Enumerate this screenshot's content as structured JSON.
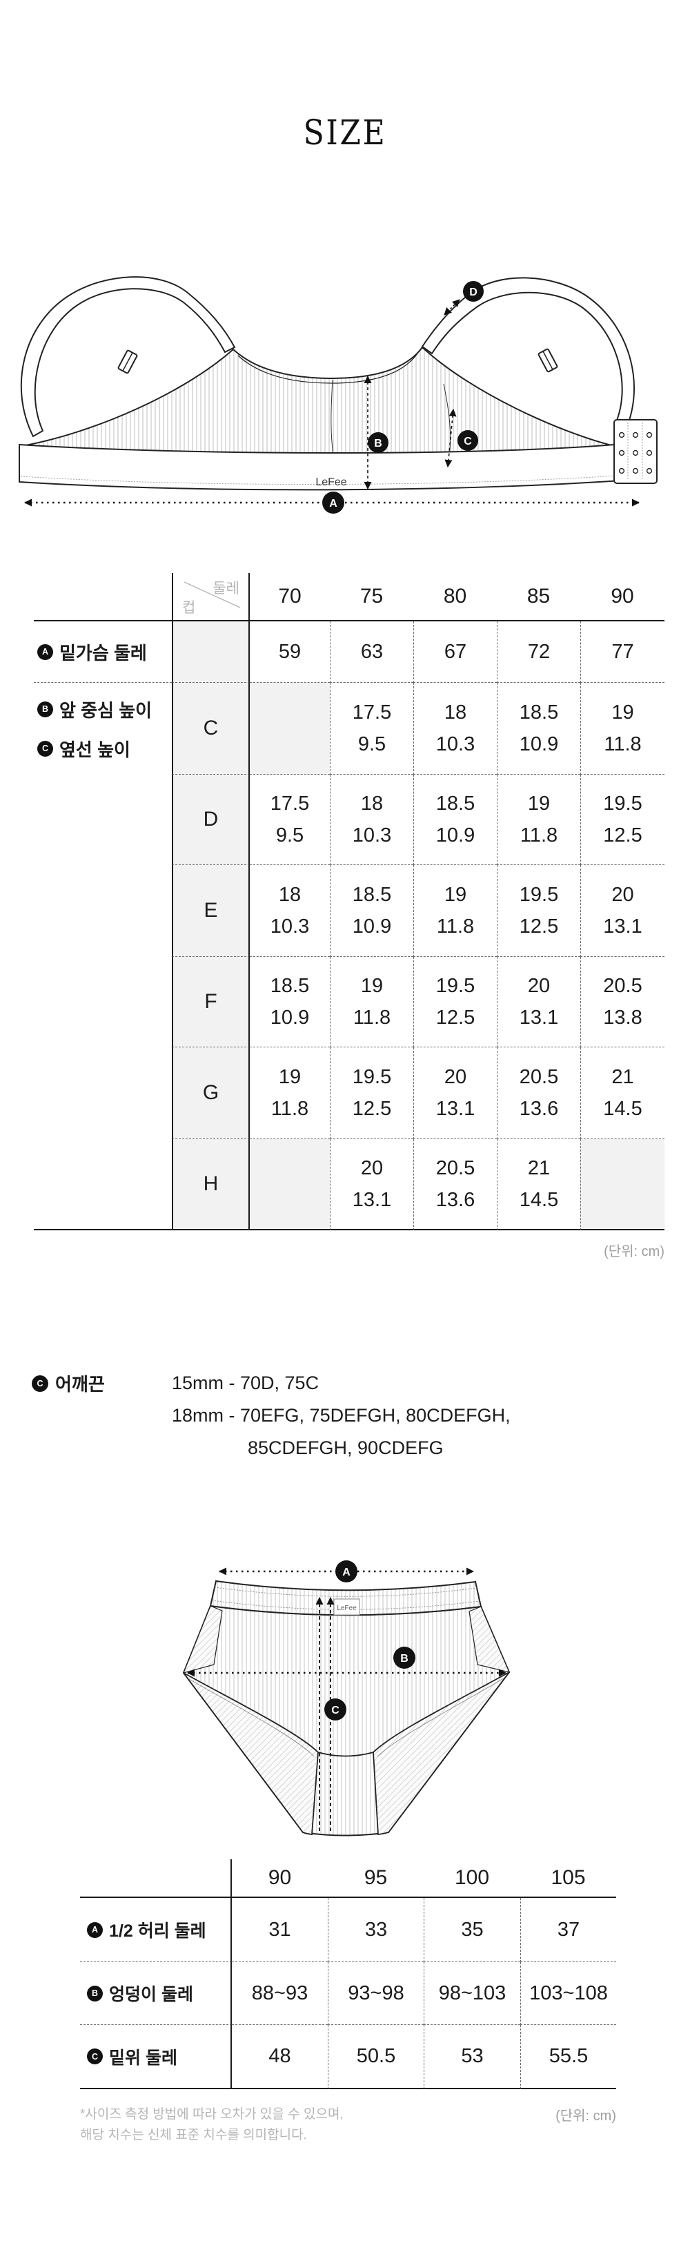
{
  "page": {
    "title": "SIZE"
  },
  "bra_diagram": {
    "brand_label": "LeFee",
    "marker_a": "A",
    "marker_b": "B",
    "marker_c": "C",
    "marker_d": "D"
  },
  "bra_table": {
    "corner_top": "둘레",
    "corner_bottom": "컵",
    "sizes": [
      "70",
      "75",
      "80",
      "85",
      "90"
    ],
    "underbust": {
      "marker": "A",
      "label": "밑가슴 둘레",
      "values": [
        "59",
        "63",
        "67",
        "72",
        "77"
      ]
    },
    "legend": [
      {
        "marker": "B",
        "label": "앞 중심 높이"
      },
      {
        "marker": "C",
        "label": "옆선 높이"
      }
    ],
    "cup_rows": [
      {
        "cup": "C",
        "cells": [
          [
            "",
            ""
          ],
          [
            "17.5",
            "9.5"
          ],
          [
            "18",
            "10.3"
          ],
          [
            "18.5",
            "10.9"
          ],
          [
            "19",
            "11.8"
          ]
        ]
      },
      {
        "cup": "D",
        "cells": [
          [
            "17.5",
            "9.5"
          ],
          [
            "18",
            "10.3"
          ],
          [
            "18.5",
            "10.9"
          ],
          [
            "19",
            "11.8"
          ],
          [
            "19.5",
            "12.5"
          ]
        ]
      },
      {
        "cup": "E",
        "cells": [
          [
            "18",
            "10.3"
          ],
          [
            "18.5",
            "10.9"
          ],
          [
            "19",
            "11.8"
          ],
          [
            "19.5",
            "12.5"
          ],
          [
            "20",
            "13.1"
          ]
        ]
      },
      {
        "cup": "F",
        "cells": [
          [
            "18.5",
            "10.9"
          ],
          [
            "19",
            "11.8"
          ],
          [
            "19.5",
            "12.5"
          ],
          [
            "20",
            "13.1"
          ],
          [
            "20.5",
            "13.8"
          ]
        ]
      },
      {
        "cup": "G",
        "cells": [
          [
            "19",
            "11.8"
          ],
          [
            "19.5",
            "12.5"
          ],
          [
            "20",
            "13.1"
          ],
          [
            "20.5",
            "13.6"
          ],
          [
            "21",
            "14.5"
          ]
        ]
      },
      {
        "cup": "H",
        "cells": [
          [
            "",
            ""
          ],
          [
            "20",
            "13.1"
          ],
          [
            "20.5",
            "13.6"
          ],
          [
            "21",
            "14.5"
          ],
          [
            "",
            ""
          ]
        ]
      }
    ],
    "unit_note": "(단위: cm)"
  },
  "strap_section": {
    "marker": "C",
    "label": "어깨끈",
    "lines": [
      "15mm - 70D, 75C",
      "18mm - 70EFG, 75DEFGH, 80CDEFGH,",
      "85CDEFGH, 90CDEFG"
    ]
  },
  "panty_diagram": {
    "brand_label": "LeFee",
    "marker_a": "A",
    "marker_b": "B",
    "marker_c": "C"
  },
  "panty_table": {
    "sizes": [
      "90",
      "95",
      "100",
      "105"
    ],
    "rows": [
      {
        "marker": "A",
        "label": "1/2 허리 둘레",
        "values": [
          "31",
          "33",
          "35",
          "37"
        ]
      },
      {
        "marker": "B",
        "label": "엉덩이 둘레",
        "values": [
          "88~93",
          "93~98",
          "98~103",
          "103~108"
        ]
      },
      {
        "marker": "C",
        "label": "밑위 둘레",
        "values": [
          "48",
          "50.5",
          "53",
          "55.5"
        ]
      }
    ],
    "unit_note": "(단위: cm)"
  },
  "footnote": {
    "line1": "*사이즈 측정 방법에 따라 오차가 있을 수 있으며,",
    "line2": "해당 치수는 신체 표준 치수를 의미합니다."
  },
  "colors": {
    "text": "#1c1c1c",
    "muted_text": "#b5b5b5",
    "unit_text": "#9e9e9e",
    "line": "#1a1a1a",
    "cell_bg": "#f2f2f2",
    "marker_bg": "#111111"
  }
}
